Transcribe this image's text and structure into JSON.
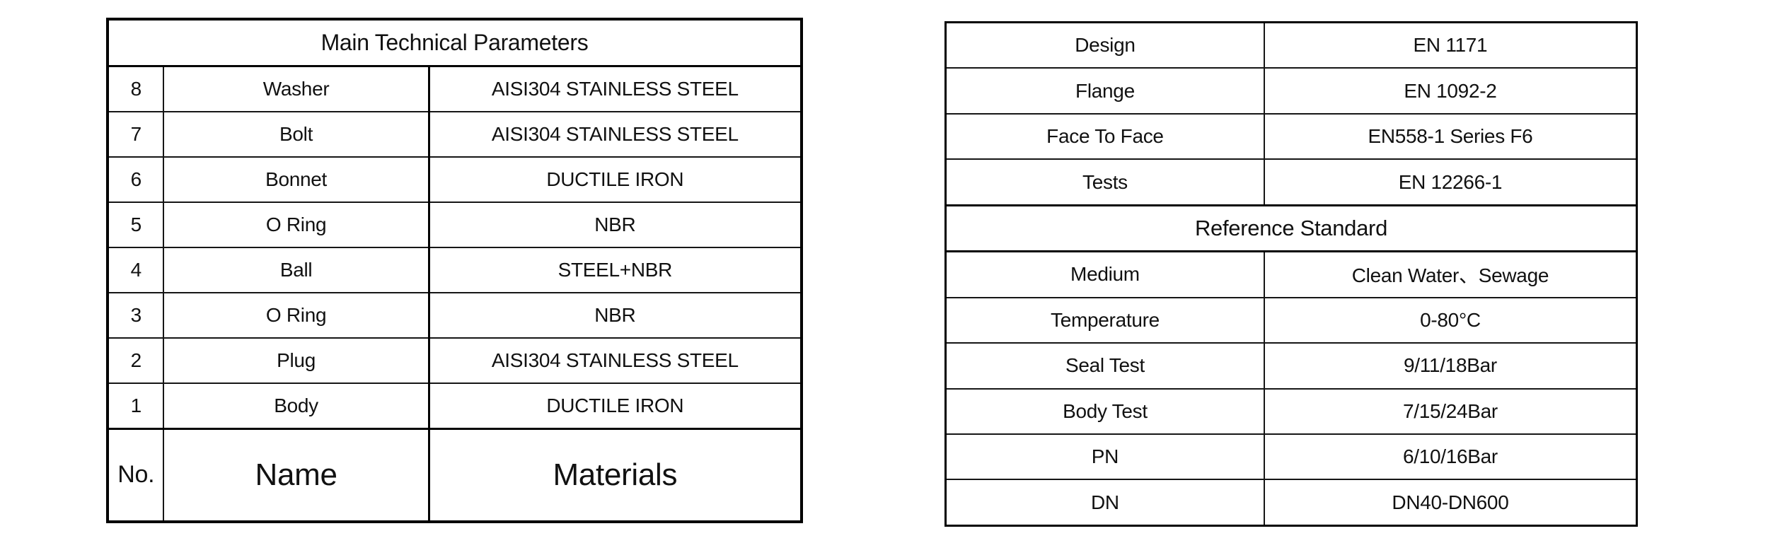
{
  "colors": {
    "background": "#ffffff",
    "border": "#000000",
    "text": "#111111"
  },
  "left_table": {
    "title": "Main Technical Parameters",
    "rows": [
      {
        "no": "8",
        "name": "Washer",
        "material": "AISI304 STAINLESS STEEL"
      },
      {
        "no": "7",
        "name": "Bolt",
        "material": "AISI304 STAINLESS STEEL"
      },
      {
        "no": "6",
        "name": "Bonnet",
        "material": "DUCTILE IRON"
      },
      {
        "no": "5",
        "name": "O Ring",
        "material": "NBR"
      },
      {
        "no": "4",
        "name": "Ball",
        "material": "STEEL+NBR"
      },
      {
        "no": "3",
        "name": "O Ring",
        "material": "NBR"
      },
      {
        "no": "2",
        "name": "Plug",
        "material": "AISI304 STAINLESS STEEL"
      },
      {
        "no": "1",
        "name": "Body",
        "material": "DUCTILE IRON"
      }
    ],
    "footer": {
      "no": "No.",
      "name": "Name",
      "material": "Materials"
    }
  },
  "right_table": {
    "rows_top": [
      {
        "label": "Design",
        "value": "EN 1171"
      },
      {
        "label": "Flange",
        "value": "EN 1092-2"
      },
      {
        "label": "Face To Face",
        "value": "EN558-1 Series F6"
      },
      {
        "label": "Tests",
        "value": "EN 12266-1"
      }
    ],
    "section_header": "Reference Standard",
    "rows_bottom": [
      {
        "label": "Medium",
        "value": "Clean Water、Sewage"
      },
      {
        "label": "Temperature",
        "value": "0-80°C"
      },
      {
        "label": "Seal Test",
        "value": "9/11/18Bar"
      },
      {
        "label": "Body Test",
        "value": "7/15/24Bar"
      },
      {
        "label": "PN",
        "value": "6/10/16Bar"
      },
      {
        "label": "DN",
        "value": "DN40-DN600"
      }
    ]
  }
}
